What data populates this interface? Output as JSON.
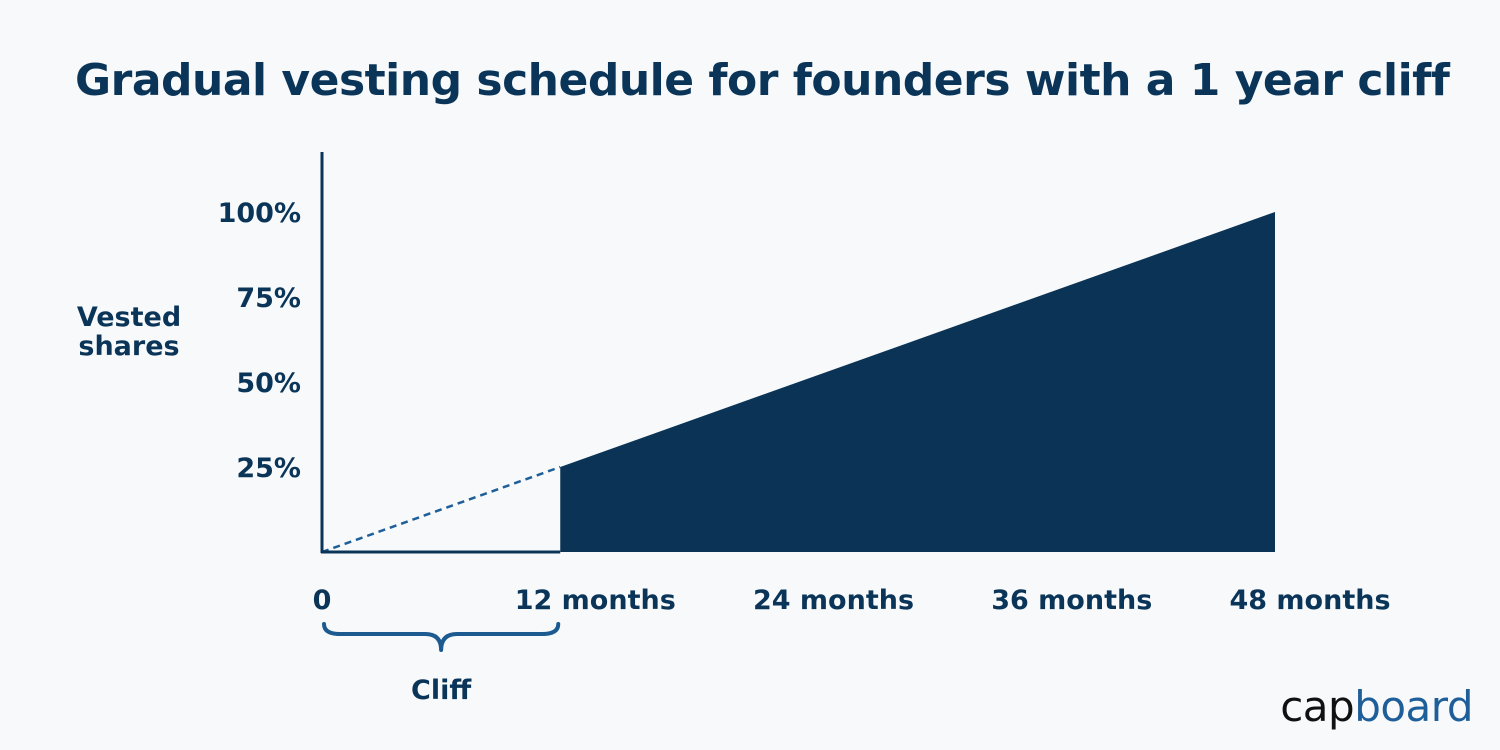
{
  "chart_data": {
    "type": "area",
    "title": "Gradual vesting schedule for founders with a 1 year cliff",
    "ylabel_lines": [
      "Vested",
      "shares"
    ],
    "x": [
      12,
      48
    ],
    "values": [
      25,
      100
    ],
    "x_ticks": [
      {
        "value": 0,
        "label": "0"
      },
      {
        "value": 12,
        "label": "12 months"
      },
      {
        "value": 24,
        "label": "24 months"
      },
      {
        "value": 36,
        "label": "36 months"
      },
      {
        "value": 48,
        "label": "48 months"
      }
    ],
    "y_ticks": [
      {
        "value": 25,
        "label": "25%"
      },
      {
        "value": 50,
        "label": "50%"
      },
      {
        "value": 75,
        "label": "75%"
      },
      {
        "value": 100,
        "label": "100%"
      }
    ],
    "xlim": [
      0,
      48
    ],
    "ylim": [
      0,
      100
    ],
    "grid": false,
    "cliff": {
      "start": 0,
      "end": 12,
      "label": "Cliff"
    },
    "pre_cliff_projection": {
      "x": [
        0,
        12
      ],
      "values": [
        0,
        25
      ],
      "style": "dashed"
    }
  },
  "brand": {
    "prefix": "cap",
    "suffix": "board"
  },
  "colors": {
    "navy": "#0b3558",
    "fill": "#0a3355",
    "dash": "#1f5f99",
    "brace": "#1c5a90",
    "brand_dark": "#111111",
    "brand_blue": "#1f5f99",
    "background": "#f7f9fb"
  }
}
